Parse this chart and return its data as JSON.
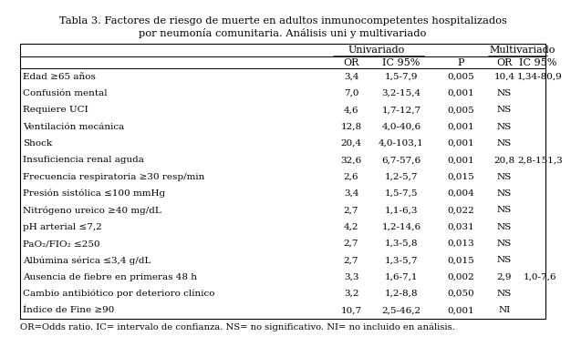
{
  "title_line1": "Tabla 3. Factores de riesgo de muerte en adultos inmunocompetentes hospitalizados",
  "title_line2": "por neumonía comunitaria. Análisis uni y multivariado",
  "col_headers": {
    "univariado": "Univariado",
    "multivariado": "Multivariado",
    "or": "OR",
    "ic95": "IC 95%",
    "p": "P",
    "or2": "OR",
    "ic95_2": "IC 95%"
  },
  "rows": [
    {
      "factor": "Edad ≥65 años",
      "or": "3,4",
      "ic": "1,5-7,9",
      "p": "0,005",
      "or2": "10,4",
      "ic2": "1,34-80,9"
    },
    {
      "factor": "Confusión mental",
      "or": "7,0",
      "ic": "3,2-15,4",
      "p": "0,001",
      "or2": "NS",
      "ic2": ""
    },
    {
      "factor": "Requiere UCI",
      "or": "4,6",
      "ic": "1,7-12,7",
      "p": "0,005",
      "or2": "NS",
      "ic2": ""
    },
    {
      "factor": "Ventilación mecánica",
      "or": "12,8",
      "ic": "4,0-40,6",
      "p": "0,001",
      "or2": "NS",
      "ic2": ""
    },
    {
      "factor": "Shock",
      "or": "20,4",
      "ic": "4,0-103,1",
      "p": "0,001",
      "or2": "NS",
      "ic2": ""
    },
    {
      "factor": "Insuficiencia renal aguda",
      "or": "32,6",
      "ic": "6,7-57,6",
      "p": "0,001",
      "or2": "20,8",
      "ic2": "2,8-151,3"
    },
    {
      "factor": "Frecuencia respiratoria ≥30 resp/min",
      "or": "2,6",
      "ic": "1,2-5,7",
      "p": "0,015",
      "or2": "NS",
      "ic2": ""
    },
    {
      "factor": "Presión sistólica ≤100 mmHg",
      "or": "3,4",
      "ic": "1,5-7,5",
      "p": "0,004",
      "or2": "NS",
      "ic2": ""
    },
    {
      "factor": "Nitrógeno ureico ≥40 mg/dL",
      "or": "2,7",
      "ic": "1,1-6,3",
      "p": "0,022",
      "or2": "NS",
      "ic2": ""
    },
    {
      "factor": "pH arterial ≤7,2",
      "or": "4,2",
      "ic": "1,2-14,6",
      "p": "0,031",
      "or2": "NS",
      "ic2": ""
    },
    {
      "factor": "PaO₂/FIO₂ ≤250",
      "or": "2,7",
      "ic": "1,3-5,8",
      "p": "0,013",
      "or2": "NS",
      "ic2": ""
    },
    {
      "factor": "Albúmina sérica ≤3,4 g/dL",
      "or": "2,7",
      "ic": "1,3-5,7",
      "p": "0,015",
      "or2": "NS",
      "ic2": ""
    },
    {
      "factor": "Ausencia de fiebre en primeras 48 h",
      "or": "3,3",
      "ic": "1,6-7,1",
      "p": "0,002",
      "or2": "2,9",
      "ic2": "1,0-7,6"
    },
    {
      "factor": "Cambio antibiótico por deterioro clínico",
      "or": "3,2",
      "ic": "1,2-8,8",
      "p": "0,050",
      "or2": "NS",
      "ic2": ""
    },
    {
      "factor": "Índice de Fine ≥90",
      "or": "10,7",
      "ic": "2,5-46,2",
      "p": "0,001",
      "or2": "NI",
      "ic2": ""
    }
  ],
  "footnote": "OR=Odds ratio. IC= intervalo de confianza. NS= no significativo. NI= no incluido en análisis.",
  "bg_color": "#ffffff",
  "text_color": "#000000",
  "title_fontsize": 8.2,
  "header_fontsize": 8.0,
  "row_fontsize": 7.5,
  "footnote_fontsize": 7.2
}
